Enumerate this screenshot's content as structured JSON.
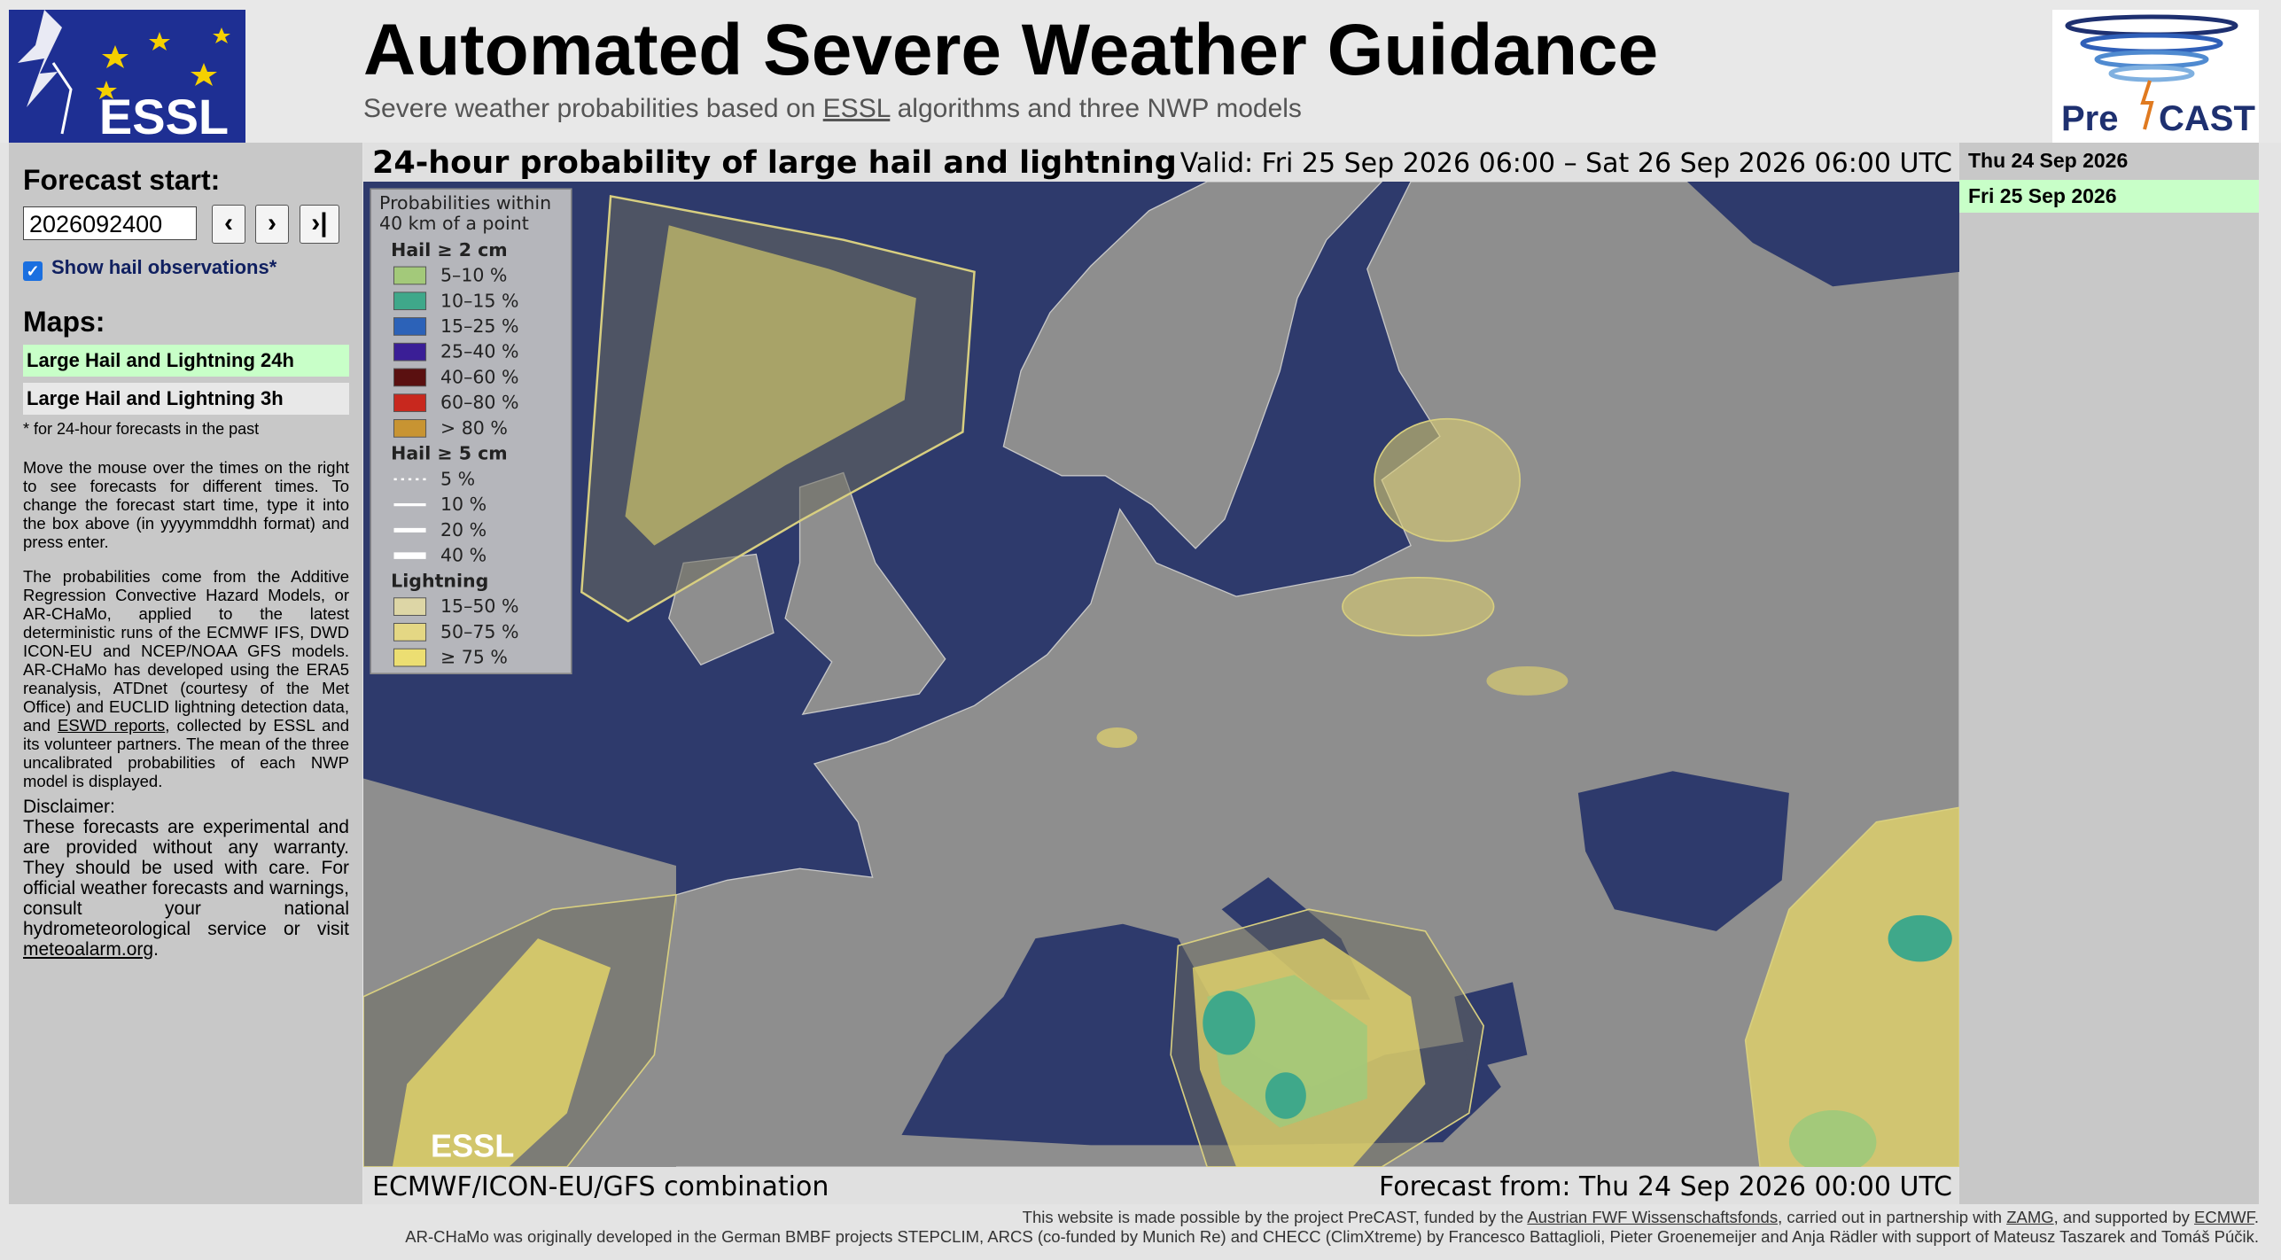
{
  "header": {
    "title": "Automated Severe Weather Guidance",
    "subtitle": [
      "Severe weather probabilities based on ",
      "ESSL",
      " algorithms and three NWP models"
    ],
    "logo_left": "ESSL",
    "logo_right": [
      "Pre",
      "CAST"
    ]
  },
  "sidebar": {
    "forecast_start_label": "Forecast start:",
    "forecast_start_value": "2026092400",
    "buttons": [
      "‹",
      "›",
      "›|"
    ],
    "show_hail_label": "Show hail observations*",
    "maps_label": "Maps:",
    "maps": [
      "Large Hail and Lightning 24h",
      "Large Hail and Lightning 3h"
    ],
    "note": "* for 24-hour forecasts in the past",
    "paragraph_1": "Move the mouse over the times on the right to see forecasts for different times. To change the forecast start time, type it into the box above (in yyyymmddhh format) and press enter.",
    "paragraph_2": [
      "The probabilities come from the Additive Regression Convective Hazard Models, or AR-CHaMo, applied to the latest deterministic runs of the ECMWF IFS, DWD ICON-EU and NCEP/NOAA GFS models. AR-CHaMo has developed using the ERA5 reanalysis, ATDnet (courtesy of the Met Office) and EUCLID lightning detection data, and ",
      "ESWD reports",
      ", collected by ESSL and its volunteer partners. The mean of the three uncalibrated probabilities of each NWP model is displayed."
    ],
    "disclaimer_title": "Disclaimer:",
    "disclaimer": [
      "These forecasts are experimental and are provided without any warranty. They should be used with care. For official weather forecasts and warnings, consult your national hydrometeorological service or visit ",
      "meteoalarm.org",
      "."
    ]
  },
  "map": {
    "title": "24-hour probability of large hail and lightning",
    "valid": "Valid: Fri 25 Sep 2026 06:00 – Sat 26 Sep 2026 06:00 UTC",
    "model": "ECMWF/ICON-EU/GFS combination",
    "forecast_from": "Forecast from: Thu 24 Sep 2026 00:00 UTC",
    "watermark": "ESSL",
    "legend": {
      "title": [
        "Probabilities within",
        "40 km of a point"
      ],
      "groups": [
        {
          "title": "Hail ≥ 2 cm",
          "items": [
            {
              "label": "5–10 %",
              "color": "#a3c97a"
            },
            {
              "label": "10–15 %",
              "color": "#3fa88a"
            },
            {
              "label": "15–25 %",
              "color": "#2c62b8"
            },
            {
              "label": "25–40 %",
              "color": "#3a1e96"
            },
            {
              "label": "40–60 %",
              "color": "#5a1010"
            },
            {
              "label": "60–80 %",
              "color": "#c8281e"
            },
            {
              "label": "> 80 %",
              "color": "#c89432"
            }
          ]
        },
        {
          "title": "Hail ≥ 5 cm",
          "items": [
            {
              "label": "5 %",
              "color": "#ffffff"
            },
            {
              "label": "10 %",
              "color": "#ffffff"
            },
            {
              "label": "20 %",
              "color": "#ffffff"
            },
            {
              "label": "40 %",
              "color": "#ffffff"
            }
          ]
        },
        {
          "title": "Lightning",
          "items": [
            {
              "label": "15–50 %",
              "color": "#ddd6a6"
            },
            {
              "label": "50–75 %",
              "color": "#e4d784"
            },
            {
              "label": "≥ 75 %",
              "color": "#ecde72"
            }
          ]
        }
      ]
    }
  },
  "dates": [
    "Thu 24 Sep 2026",
    "Fri 25 Sep 2026"
  ],
  "footer": {
    "line_1": [
      "This website is made possible by the project PreCAST, funded by the ",
      "Austrian FWF Wissenschaftsfonds",
      ", carried out in partnership with ",
      "ZAMG",
      ", and supported by ",
      "ECMWF",
      "."
    ],
    "line_2": "AR-CHaMo was originally developed in the German BMBF projects STEPCLIM, ARCS (co-funded by Munich Re) and CHECC (ClimXtreme) by Francesco Battaglioli, Pieter Groenemeijer and Anja Rädler with support of Mateusz Taszarek and Tomáš Púčik."
  }
}
